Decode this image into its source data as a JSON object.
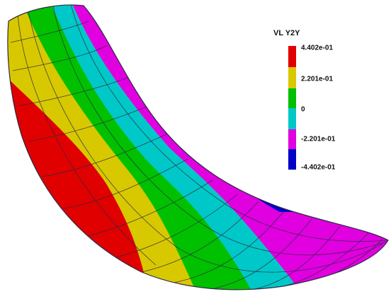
{
  "legend": {
    "title": "VL Y2Y",
    "labels": [
      "4.402e-01",
      "2.201e-01",
      "0",
      "-2.201e-01",
      "-4.402e-01"
    ]
  }
}
